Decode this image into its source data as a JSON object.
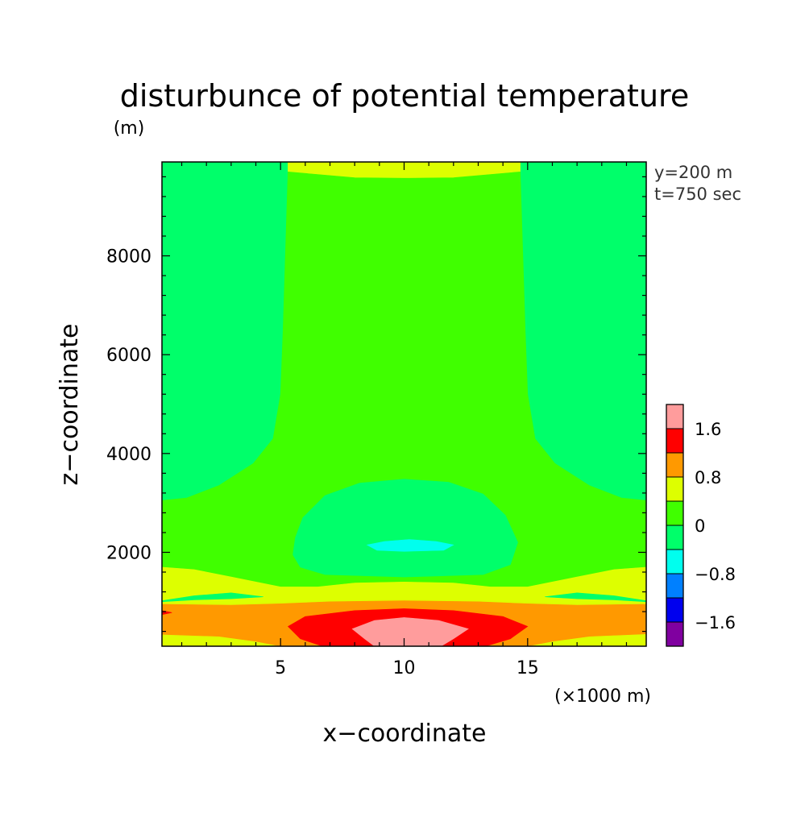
{
  "chart_data": {
    "type": "contour",
    "title": "disturbunce of potential temperature",
    "y_unit_label": "(m)",
    "x_unit_label": "(×1000 m)",
    "xlabel": "x−coordinate",
    "ylabel": "z−coordinate",
    "annotations": [
      "y=200 m",
      "t=750 sec"
    ],
    "xlim": [
      0.2,
      19.8
    ],
    "ylim": [
      100,
      9900
    ],
    "x_ticks": [
      5,
      10,
      15
    ],
    "y_ticks": [
      2000,
      4000,
      6000,
      8000
    ],
    "x_minor_step": 1,
    "y_minor_step": 400,
    "colorbar": {
      "levels": [
        -2.0,
        -1.6,
        -1.2,
        -0.8,
        -0.4,
        0,
        0.4,
        0.8,
        1.2,
        1.6,
        2.0
      ],
      "colors": [
        "#8000a0",
        "#0000ee",
        "#0080ff",
        "#00ffee",
        "#00ff6a",
        "#40ff00",
        "#ddff00",
        "#ff9900",
        "#ff0000",
        "#ff9c9c"
      ],
      "tick_labels": [
        {
          "value": 1.6,
          "text": "1.6"
        },
        {
          "value": 0.8,
          "text": "0.8"
        },
        {
          "value": 0,
          "text": "0"
        },
        {
          "value": -0.8,
          "text": "−0.8"
        },
        {
          "value": -1.6,
          "text": "−1.6"
        }
      ]
    },
    "regions": [
      {
        "name": "background",
        "range": [
          0,
          0.4
        ],
        "color": "#40ff00",
        "points": [
          [
            0.2,
            100
          ],
          [
            19.8,
            100
          ],
          [
            19.8,
            9900
          ],
          [
            0.2,
            9900
          ]
        ]
      },
      {
        "name": "left-upper-neg",
        "range": [
          -0.4,
          0
        ],
        "color": "#00ff6a",
        "points": [
          [
            0.2,
            9900
          ],
          [
            5.3,
            9900
          ],
          [
            5.1,
            6500
          ],
          [
            5.0,
            5200
          ],
          [
            4.7,
            4300
          ],
          [
            3.9,
            3800
          ],
          [
            2.5,
            3350
          ],
          [
            1.2,
            3100
          ],
          [
            0.2,
            3050
          ]
        ]
      },
      {
        "name": "right-upper-neg",
        "range": [
          -0.4,
          0
        ],
        "color": "#00ff6a",
        "points": [
          [
            19.8,
            9900
          ],
          [
            14.7,
            9900
          ],
          [
            14.9,
            6500
          ],
          [
            15.0,
            5200
          ],
          [
            15.3,
            4300
          ],
          [
            16.1,
            3800
          ],
          [
            17.5,
            3350
          ],
          [
            18.8,
            3100
          ],
          [
            19.8,
            3050
          ]
        ]
      },
      {
        "name": "central-top-band",
        "range": [
          0.4,
          0.8
        ],
        "color": "#ddff00",
        "points": [
          [
            5.3,
            9900
          ],
          [
            14.7,
            9900
          ],
          [
            14.7,
            9700
          ],
          [
            12,
            9580
          ],
          [
            10,
            9570
          ],
          [
            8,
            9580
          ],
          [
            5.3,
            9700
          ]
        ]
      },
      {
        "name": "central-column",
        "range": [
          0,
          0.4
        ],
        "color": "#40ff00",
        "points": [
          [
            5.3,
            9700
          ],
          [
            8,
            9580
          ],
          [
            10,
            9570
          ],
          [
            12,
            9580
          ],
          [
            14.7,
            9700
          ],
          [
            14.9,
            6500
          ],
          [
            15.0,
            5200
          ],
          [
            15.3,
            4300
          ],
          [
            16.1,
            3800
          ],
          [
            17.5,
            3350
          ],
          [
            18.8,
            3100
          ],
          [
            19.8,
            3050
          ],
          [
            19.8,
            1700
          ],
          [
            18.5,
            1650
          ],
          [
            17,
            1500
          ],
          [
            15,
            1300
          ],
          [
            5,
            1300
          ],
          [
            3,
            1500
          ],
          [
            1.5,
            1650
          ],
          [
            0.2,
            1700
          ],
          [
            0.2,
            3050
          ],
          [
            1.2,
            3100
          ],
          [
            2.5,
            3350
          ],
          [
            3.9,
            3800
          ],
          [
            4.7,
            4300
          ],
          [
            5.0,
            5200
          ],
          [
            5.1,
            6500
          ]
        ]
      },
      {
        "name": "lower-warm-band",
        "range": [
          0.4,
          0.8
        ],
        "color": "#ddff00",
        "points": [
          [
            0.2,
            100
          ],
          [
            19.8,
            100
          ],
          [
            19.8,
            1700
          ],
          [
            18.5,
            1650
          ],
          [
            17,
            1500
          ],
          [
            15,
            1300
          ],
          [
            13.5,
            1300
          ],
          [
            12,
            1380
          ],
          [
            10,
            1400
          ],
          [
            8,
            1380
          ],
          [
            6.5,
            1300
          ],
          [
            5,
            1300
          ],
          [
            3,
            1500
          ],
          [
            1.5,
            1650
          ],
          [
            0.2,
            1700
          ]
        ]
      },
      {
        "name": "left-neg-sliver",
        "range": [
          -0.4,
          0
        ],
        "color": "#00ff6a",
        "points": [
          [
            0.2,
            1020
          ],
          [
            1.5,
            1120
          ],
          [
            3,
            1180
          ],
          [
            4.3,
            1100
          ],
          [
            3,
            1060
          ],
          [
            1.5,
            1040
          ],
          [
            0.2,
            1000
          ]
        ]
      },
      {
        "name": "right-neg-sliver",
        "range": [
          -0.4,
          0
        ],
        "color": "#00ff6a",
        "points": [
          [
            19.8,
            1020
          ],
          [
            18.5,
            1120
          ],
          [
            17,
            1180
          ],
          [
            15.7,
            1100
          ],
          [
            17,
            1060
          ],
          [
            18.5,
            1040
          ],
          [
            19.8,
            1000
          ]
        ]
      },
      {
        "name": "central-neg-blob",
        "range": [
          -0.4,
          0
        ],
        "color": "#00ff6a",
        "points": [
          [
            5.6,
            2300
          ],
          [
            5.9,
            2700
          ],
          [
            6.8,
            3150
          ],
          [
            8.2,
            3400
          ],
          [
            10,
            3480
          ],
          [
            11.8,
            3420
          ],
          [
            13.2,
            3180
          ],
          [
            14.1,
            2750
          ],
          [
            14.6,
            2200
          ],
          [
            14.3,
            1750
          ],
          [
            13.2,
            1550
          ],
          [
            10,
            1500
          ],
          [
            6.8,
            1550
          ],
          [
            5.8,
            1700
          ],
          [
            5.5,
            1950
          ]
        ]
      },
      {
        "name": "cold-core",
        "range": [
          -0.8,
          -0.4
        ],
        "color": "#00ffee",
        "points": [
          [
            8.5,
            2150
          ],
          [
            9.2,
            2220
          ],
          [
            10.2,
            2260
          ],
          [
            11.3,
            2220
          ],
          [
            12.0,
            2150
          ],
          [
            11.6,
            2040
          ],
          [
            10,
            2020
          ],
          [
            8.9,
            2040
          ]
        ]
      },
      {
        "name": "orange-band",
        "range": [
          0.8,
          1.2
        ],
        "color": "#ff9900",
        "points": [
          [
            0.2,
            950
          ],
          [
            3,
            930
          ],
          [
            5,
            960
          ],
          [
            7,
            1000
          ],
          [
            10,
            1020
          ],
          [
            13,
            1000
          ],
          [
            15,
            960
          ],
          [
            17,
            930
          ],
          [
            19.8,
            950
          ],
          [
            19.8,
            350
          ],
          [
            17.5,
            300
          ],
          [
            16,
            200
          ],
          [
            15,
            100
          ],
          [
            5,
            100
          ],
          [
            4,
            200
          ],
          [
            2.5,
            300
          ],
          [
            0.2,
            340
          ]
        ]
      },
      {
        "name": "red-tip",
        "range": [
          1.2,
          1.6
        ],
        "color": "#ff0000",
        "points": [
          [
            0.2,
            820
          ],
          [
            0.6,
            780
          ],
          [
            0.2,
            740
          ]
        ]
      },
      {
        "name": "red-core",
        "range": [
          1.2,
          1.6
        ],
        "color": "#ff0000",
        "points": [
          [
            5.3,
            500
          ],
          [
            6,
            700
          ],
          [
            8,
            820
          ],
          [
            10,
            860
          ],
          [
            12,
            820
          ],
          [
            14,
            700
          ],
          [
            15,
            500
          ],
          [
            14.3,
            250
          ],
          [
            13.3,
            100
          ],
          [
            6.7,
            100
          ],
          [
            5.8,
            250
          ]
        ]
      },
      {
        "name": "max-core",
        "range": [
          1.6,
          2.0
        ],
        "color": "#ff9c9c",
        "points": [
          [
            7.9,
            450
          ],
          [
            8.8,
            620
          ],
          [
            10,
            680
          ],
          [
            11.4,
            620
          ],
          [
            12.6,
            450
          ],
          [
            12.0,
            250
          ],
          [
            11.5,
            100
          ],
          [
            8.8,
            100
          ],
          [
            8.4,
            250
          ]
        ]
      }
    ]
  }
}
